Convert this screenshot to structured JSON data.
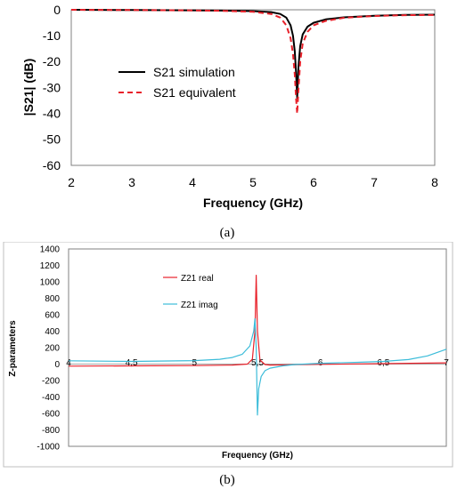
{
  "chart_data": [
    {
      "type": "line",
      "caption": "(a)",
      "xlabel": "Frequency (GHz)",
      "ylabel": "|S21| (dB)",
      "xlim": [
        2,
        8
      ],
      "ylim": [
        -60,
        0
      ],
      "xticks": [
        "2",
        "3",
        "4",
        "5",
        "6",
        "7",
        "8"
      ],
      "yticks": [
        "0",
        "-10",
        "-20",
        "-30",
        "-40",
        "-50",
        "-60"
      ],
      "grid": false,
      "legend_position": "center-left",
      "series": [
        {
          "name": "S21 simulation",
          "color": "#000000",
          "dash": "solid",
          "points": [
            [
              2,
              0
            ],
            [
              3,
              -0.1
            ],
            [
              4,
              -0.2
            ],
            [
              4.5,
              -0.3
            ],
            [
              5,
              -0.5
            ],
            [
              5.3,
              -0.9
            ],
            [
              5.45,
              -1.6
            ],
            [
              5.55,
              -3
            ],
            [
              5.62,
              -6
            ],
            [
              5.66,
              -10
            ],
            [
              5.69,
              -16
            ],
            [
              5.71,
              -24
            ],
            [
              5.73,
              -34
            ],
            [
              5.75,
              -22
            ],
            [
              5.78,
              -14
            ],
            [
              5.82,
              -9.5
            ],
            [
              5.9,
              -6.5
            ],
            [
              6,
              -5
            ],
            [
              6.2,
              -3.7
            ],
            [
              6.5,
              -2.9
            ],
            [
              7,
              -2.3
            ],
            [
              7.5,
              -2
            ],
            [
              8,
              -1.9
            ]
          ]
        },
        {
          "name": "S21 equivalent",
          "color": "#e8212a",
          "dash": "dashed",
          "points": [
            [
              2,
              0
            ],
            [
              3,
              -0.1
            ],
            [
              4,
              -0.25
            ],
            [
              4.5,
              -0.4
            ],
            [
              5,
              -0.8
            ],
            [
              5.3,
              -1.6
            ],
            [
              5.45,
              -3
            ],
            [
              5.55,
              -6
            ],
            [
              5.62,
              -11
            ],
            [
              5.66,
              -17
            ],
            [
              5.69,
              -25
            ],
            [
              5.71,
              -34
            ],
            [
              5.73,
              -40
            ],
            [
              5.75,
              -31
            ],
            [
              5.78,
              -20
            ],
            [
              5.82,
              -13
            ],
            [
              5.9,
              -8.5
            ],
            [
              6,
              -6
            ],
            [
              6.2,
              -4.3
            ],
            [
              6.5,
              -3.1
            ],
            [
              7,
              -2.4
            ],
            [
              7.5,
              -2.1
            ],
            [
              8,
              -2
            ]
          ]
        }
      ]
    },
    {
      "type": "line",
      "caption": "(b)",
      "xlabel": "Frequency (GHz)",
      "ylabel": "Z-parameters",
      "xlim": [
        4,
        7
      ],
      "ylim": [
        -1000,
        1400
      ],
      "xticks": [
        "4",
        "4,5",
        "5",
        "5,5",
        "6",
        "6,5",
        "7"
      ],
      "yticks": [
        "1400",
        "1200",
        "1000",
        "800",
        "600",
        "400",
        "200",
        "0",
        "-200",
        "-400",
        "-600",
        "-800",
        "-1000"
      ],
      "grid": false,
      "legend_position": "top-left",
      "series": [
        {
          "name": "Z21 real",
          "color": "#e8212a",
          "points": [
            [
              4,
              -25
            ],
            [
              4.5,
              -22
            ],
            [
              5,
              -18
            ],
            [
              5.3,
              -12
            ],
            [
              5.42,
              0
            ],
            [
              5.46,
              60
            ],
            [
              5.48,
              400
            ],
            [
              5.49,
              1080
            ],
            [
              5.5,
              400
            ],
            [
              5.52,
              50
            ],
            [
              5.56,
              -5
            ],
            [
              5.6,
              -12
            ],
            [
              5.8,
              -8
            ],
            [
              6,
              -3
            ],
            [
              6.5,
              5
            ],
            [
              7,
              15
            ]
          ]
        },
        {
          "name": "Z21 imag",
          "color": "#3bbcd9",
          "points": [
            [
              4,
              40
            ],
            [
              4.5,
              32
            ],
            [
              5,
              42
            ],
            [
              5.2,
              58
            ],
            [
              5.3,
              80
            ],
            [
              5.38,
              120
            ],
            [
              5.44,
              220
            ],
            [
              5.47,
              400
            ],
            [
              5.48,
              550
            ],
            [
              5.49,
              200
            ],
            [
              5.5,
              -620
            ],
            [
              5.51,
              -300
            ],
            [
              5.53,
              -150
            ],
            [
              5.56,
              -80
            ],
            [
              5.6,
              -50
            ],
            [
              5.7,
              -22
            ],
            [
              5.8,
              -5
            ],
            [
              6,
              10
            ],
            [
              6.3,
              22
            ],
            [
              6.5,
              32
            ],
            [
              6.7,
              55
            ],
            [
              6.85,
              100
            ],
            [
              7,
              180
            ]
          ]
        }
      ]
    }
  ]
}
